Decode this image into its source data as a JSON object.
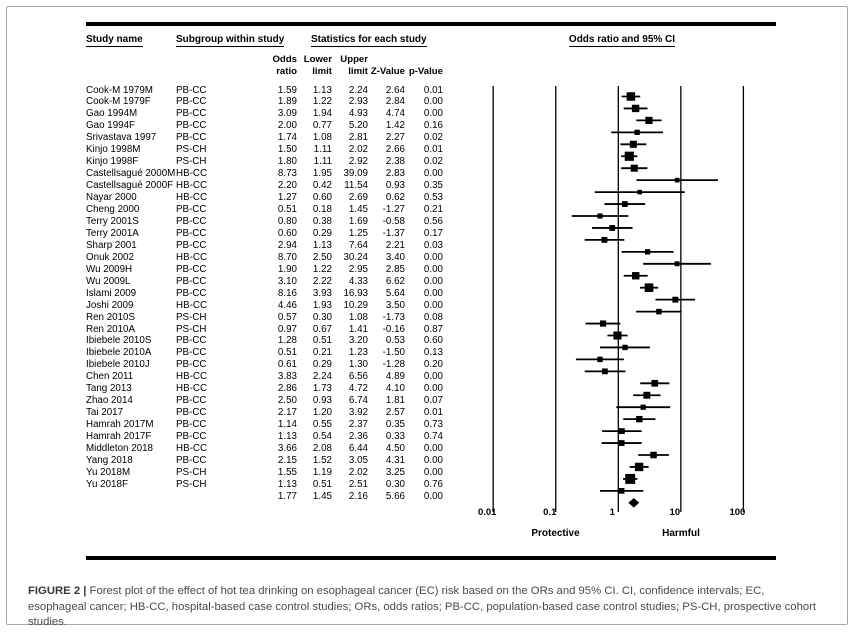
{
  "figure": {
    "caption_label": "FIGURE 2 |",
    "caption_text": " Forest plot of the effect of hot tea drinking on esophageal cancer (EC) risk based on the ORs and 95% CI. CI, confidence intervals; EC, esophageal cancer; HB-CC, hospital-based case control studies; ORs, odds ratios; PB-CC, population-based case control studies; PS-CH, prospective cohort studies."
  },
  "table": {
    "headers": {
      "study": "Study name",
      "subgroup": "Subgroup within study",
      "stats": "Statistics for each study",
      "plot": "Odds ratio and 95% CI"
    },
    "stat_columns": [
      {
        "line1": "Odds",
        "line2": "ratio"
      },
      {
        "line1": "Lower",
        "line2": "limit"
      },
      {
        "line1": "Upper",
        "line2": "limit"
      },
      {
        "line1": "",
        "line2": "Z-Value"
      },
      {
        "line1": "",
        "line2": "p-Value"
      }
    ]
  },
  "axis": {
    "ticks": [
      0.01,
      0.1,
      1,
      10,
      100
    ],
    "tick_labels": [
      "0.01",
      "0.1",
      "1",
      "10",
      "100"
    ],
    "left_label": "Protective",
    "right_label": "Harmful"
  },
  "chart_data": {
    "type": "scatter",
    "variant": "forest-plot",
    "title": "Odds ratio and 95% CI",
    "x_scale": "log",
    "x_range": [
      0.01,
      100
    ],
    "rows": [
      {
        "study": "Cook-M 1979M",
        "subgroup": "PB-CC",
        "or": 1.59,
        "lower": 1.13,
        "upper": 2.24,
        "z": 2.64,
        "p": 0.01
      },
      {
        "study": "Cook-M 1979F",
        "subgroup": "PB-CC",
        "or": 1.89,
        "lower": 1.22,
        "upper": 2.93,
        "z": 2.84,
        "p": 0.0
      },
      {
        "study": "Gao 1994M",
        "subgroup": "PB-CC",
        "or": 3.09,
        "lower": 1.94,
        "upper": 4.93,
        "z": 4.74,
        "p": 0.0
      },
      {
        "study": "Gao 1994F",
        "subgroup": "PB-CC",
        "or": 2.0,
        "lower": 0.77,
        "upper": 5.2,
        "z": 1.42,
        "p": 0.16
      },
      {
        "study": "Srivastava 1997",
        "subgroup": "PB-CC",
        "or": 1.74,
        "lower": 1.08,
        "upper": 2.81,
        "z": 2.27,
        "p": 0.02
      },
      {
        "study": "Kinjo 1998M",
        "subgroup": "PS-CH",
        "or": 1.5,
        "lower": 1.11,
        "upper": 2.02,
        "z": 2.66,
        "p": 0.01
      },
      {
        "study": "Kinjo 1998F",
        "subgroup": "PS-CH",
        "or": 1.8,
        "lower": 1.11,
        "upper": 2.92,
        "z": 2.38,
        "p": 0.02
      },
      {
        "study": "Castellsagué 2000M",
        "subgroup": "HB-CC",
        "or": 8.73,
        "lower": 1.95,
        "upper": 39.09,
        "z": 2.83,
        "p": 0.0
      },
      {
        "study": "Castellsagué 2000F",
        "subgroup": "HB-CC",
        "or": 2.2,
        "lower": 0.42,
        "upper": 11.54,
        "z": 0.93,
        "p": 0.35
      },
      {
        "study": "Nayar 2000",
        "subgroup": "HB-CC",
        "or": 1.27,
        "lower": 0.6,
        "upper": 2.69,
        "z": 0.62,
        "p": 0.53
      },
      {
        "study": "Cheng 2000",
        "subgroup": "PB-CC",
        "or": 0.51,
        "lower": 0.18,
        "upper": 1.45,
        "z": -1.27,
        "p": 0.21
      },
      {
        "study": "Terry 2001S",
        "subgroup": "PB-CC",
        "or": 0.8,
        "lower": 0.38,
        "upper": 1.69,
        "z": -0.58,
        "p": 0.56
      },
      {
        "study": "Terry 2001A",
        "subgroup": "PB-CC",
        "or": 0.6,
        "lower": 0.29,
        "upper": 1.25,
        "z": -1.37,
        "p": 0.17
      },
      {
        "study": "Sharp 2001",
        "subgroup": "PB-CC",
        "or": 2.94,
        "lower": 1.13,
        "upper": 7.64,
        "z": 2.21,
        "p": 0.03
      },
      {
        "study": "Onuk 2002",
        "subgroup": "HB-CC",
        "or": 8.7,
        "lower": 2.5,
        "upper": 30.24,
        "z": 3.4,
        "p": 0.0
      },
      {
        "study": "Wu 2009H",
        "subgroup": "PB-CC",
        "or": 1.9,
        "lower": 1.22,
        "upper": 2.95,
        "z": 2.85,
        "p": 0.0
      },
      {
        "study": "Wu 2009L",
        "subgroup": "PB-CC",
        "or": 3.1,
        "lower": 2.22,
        "upper": 4.33,
        "z": 6.62,
        "p": 0.0
      },
      {
        "study": "Islami 2009",
        "subgroup": "PB-CC",
        "or": 8.16,
        "lower": 3.93,
        "upper": 16.93,
        "z": 5.64,
        "p": 0.0
      },
      {
        "study": "Joshi 2009",
        "subgroup": "HB-CC",
        "or": 4.46,
        "lower": 1.93,
        "upper": 10.29,
        "z": 3.5,
        "p": 0.0
      },
      {
        "study": "Ren 2010S",
        "subgroup": "PS-CH",
        "or": 0.57,
        "lower": 0.3,
        "upper": 1.08,
        "z": -1.73,
        "p": 0.08
      },
      {
        "study": "Ren 2010A",
        "subgroup": "PS-CH",
        "or": 0.97,
        "lower": 0.67,
        "upper": 1.41,
        "z": -0.16,
        "p": 0.87
      },
      {
        "study": "Ibiebele 2010S",
        "subgroup": "PB-CC",
        "or": 1.28,
        "lower": 0.51,
        "upper": 3.2,
        "z": 0.53,
        "p": 0.6
      },
      {
        "study": "Ibiebele 2010A",
        "subgroup": "PB-CC",
        "or": 0.51,
        "lower": 0.21,
        "upper": 1.23,
        "z": -1.5,
        "p": 0.13
      },
      {
        "study": "Ibiebele 2010J",
        "subgroup": "PB-CC",
        "or": 0.61,
        "lower": 0.29,
        "upper": 1.3,
        "z": -1.28,
        "p": 0.2
      },
      {
        "study": "Chen 2011",
        "subgroup": "HB-CC",
        "or": 3.83,
        "lower": 2.24,
        "upper": 6.56,
        "z": 4.89,
        "p": 0.0
      },
      {
        "study": "Tang 2013",
        "subgroup": "HB-CC",
        "or": 2.86,
        "lower": 1.73,
        "upper": 4.72,
        "z": 4.1,
        "p": 0.0
      },
      {
        "study": "Zhao 2014",
        "subgroup": "PB-CC",
        "or": 2.5,
        "lower": 0.93,
        "upper": 6.74,
        "z": 1.81,
        "p": 0.07
      },
      {
        "study": "Tai 2017",
        "subgroup": "PB-CC",
        "or": 2.17,
        "lower": 1.2,
        "upper": 3.92,
        "z": 2.57,
        "p": 0.01
      },
      {
        "study": "Hamrah 2017M",
        "subgroup": "PB-CC",
        "or": 1.14,
        "lower": 0.55,
        "upper": 2.37,
        "z": 0.35,
        "p": 0.73
      },
      {
        "study": "Hamrah 2017F",
        "subgroup": "PB-CC",
        "or": 1.13,
        "lower": 0.54,
        "upper": 2.36,
        "z": 0.33,
        "p": 0.74
      },
      {
        "study": "Middleton 2018",
        "subgroup": "HB-CC",
        "or": 3.66,
        "lower": 2.08,
        "upper": 6.44,
        "z": 4.5,
        "p": 0.0
      },
      {
        "study": "Yang 2018",
        "subgroup": "PB-CC",
        "or": 2.15,
        "lower": 1.52,
        "upper": 3.05,
        "z": 4.31,
        "p": 0.0
      },
      {
        "study": "Yu 2018M",
        "subgroup": "PS-CH",
        "or": 1.55,
        "lower": 1.19,
        "upper": 2.02,
        "z": 3.25,
        "p": 0.0
      },
      {
        "study": "Yu 2018F",
        "subgroup": "PS-CH",
        "or": 1.13,
        "lower": 0.51,
        "upper": 2.51,
        "z": 0.3,
        "p": 0.76
      }
    ],
    "summary": {
      "study": "",
      "subgroup": "",
      "or": 1.77,
      "lower": 1.45,
      "upper": 2.16,
      "z": 5.66,
      "p": 0.0
    }
  },
  "colors": {
    "ink": "#000000",
    "caption": "#4a4a4a",
    "border": "#a9a9a9"
  }
}
